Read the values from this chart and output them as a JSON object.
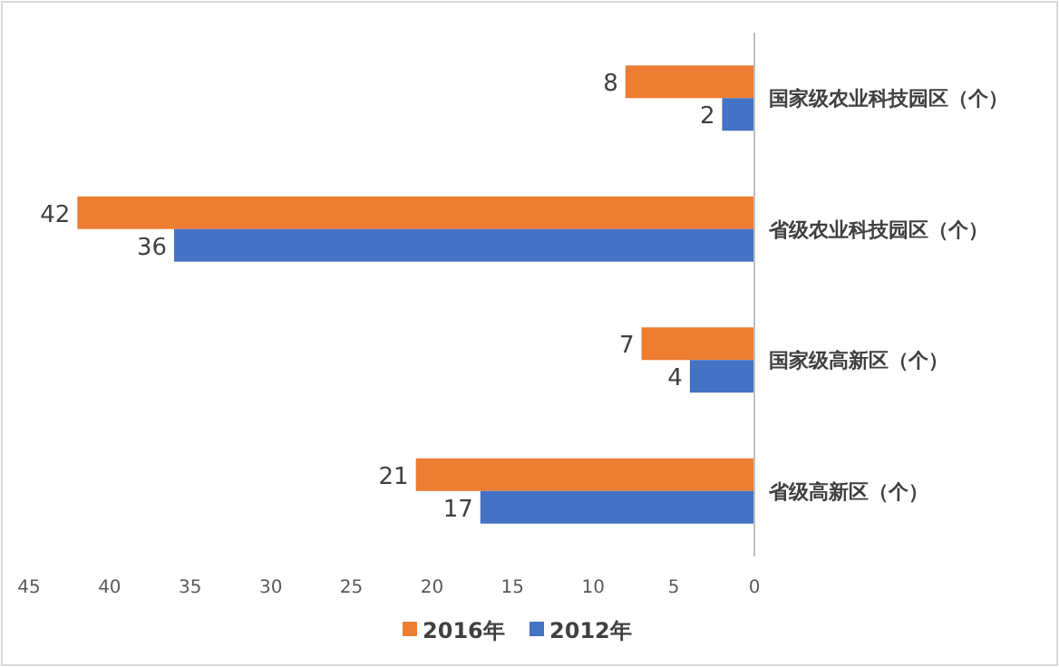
{
  "chart_data": {
    "type": "bar",
    "orientation": "horizontal",
    "categories": [
      "国家级农业科技园区（个）",
      "省级农业科技园区（个）",
      "国家级高新区（个）",
      "省级高新区（个）"
    ],
    "series": [
      {
        "name": "2016年",
        "color": "#ed7d31",
        "values": [
          8,
          42,
          7,
          21
        ]
      },
      {
        "name": "2012年",
        "color": "#4472c4",
        "values": [
          2,
          36,
          4,
          17
        ]
      }
    ],
    "xlim": [
      45,
      0
    ],
    "xticks": [
      45,
      40,
      35,
      30,
      25,
      20,
      15,
      10,
      5,
      0
    ],
    "data_labels": true,
    "legend": "bottom"
  }
}
